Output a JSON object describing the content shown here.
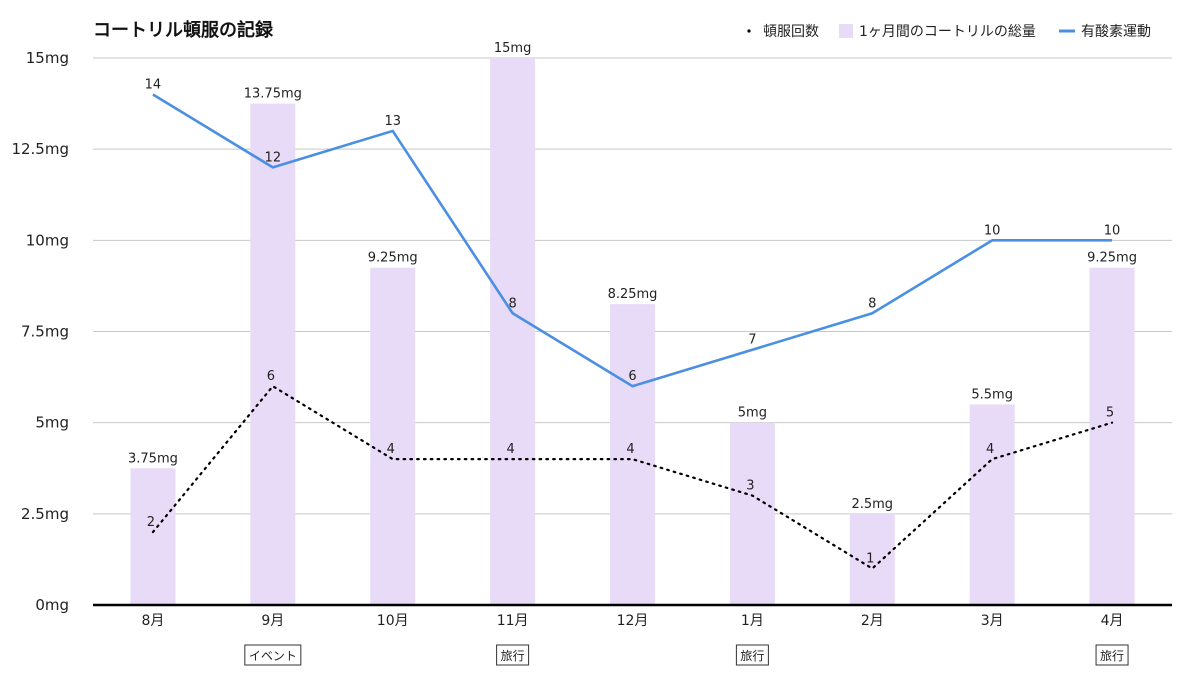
{
  "chart_data": {
    "type": "bar",
    "title": "コートリル頓服の記録",
    "categories": [
      "8月",
      "9月",
      "10月",
      "11月",
      "12月",
      "1月",
      "2月",
      "3月",
      "4月"
    ],
    "yticks": [
      "0mg",
      "2.5mg",
      "5mg",
      "7.5mg",
      "10mg",
      "12.5mg",
      "15mg"
    ],
    "ylim": [
      0,
      15
    ],
    "grid": true,
    "legend_position": "top-right",
    "series": [
      {
        "name": "頓服回数",
        "kind": "line-dotted",
        "color": "#000000",
        "values": [
          2,
          6,
          4,
          4,
          4,
          3,
          1,
          4,
          5
        ],
        "labels": [
          "2",
          "6",
          "4",
          "4",
          "4",
          "3",
          "1",
          "4",
          "5"
        ]
      },
      {
        "name": "1ヶ月間のコートリルの総量",
        "kind": "bar",
        "color": "#e8dbf7",
        "values": [
          3.75,
          13.75,
          9.25,
          15,
          8.25,
          5,
          2.5,
          5.5,
          9.25
        ],
        "labels": [
          "3.75mg",
          "13.75mg",
          "9.25mg",
          "15mg",
          "8.25mg",
          "5mg",
          "2.5mg",
          "5.5mg",
          "9.25mg"
        ]
      },
      {
        "name": "有酸素運動",
        "kind": "line",
        "color": "#4a8fe2",
        "values": [
          14,
          12,
          13,
          8,
          6,
          7,
          8,
          10,
          10
        ],
        "labels": [
          "14",
          "12",
          "13",
          "8",
          "6",
          "7",
          "8",
          "10",
          "10"
        ]
      }
    ],
    "annotations": [
      {
        "category": "9月",
        "text": "イベント"
      },
      {
        "category": "11月",
        "text": "旅行"
      },
      {
        "category": "1月",
        "text": "旅行"
      },
      {
        "category": "4月",
        "text": "旅行"
      }
    ]
  }
}
